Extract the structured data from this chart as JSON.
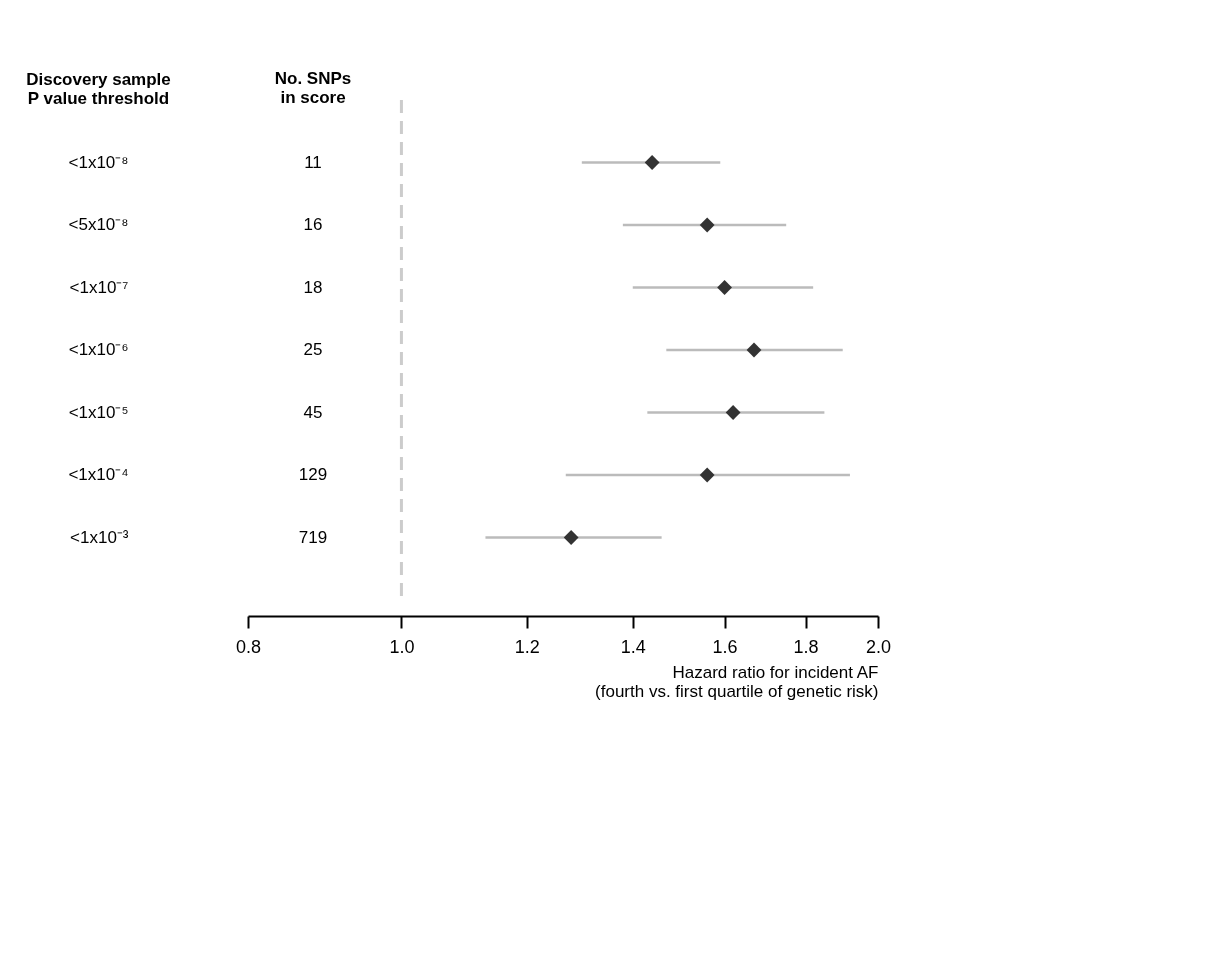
{
  "chart_data": {
    "type": "scatter",
    "orientation": "horizontal",
    "categories": [
      "<1x10⁻⁸",
      "<5x10⁻⁸",
      "<1x10⁻⁷",
      "<1x10⁻⁶",
      "<1x10⁻⁵",
      "<1x10⁻⁴",
      "<1x10⁻³"
    ],
    "y2_categories": [
      "11",
      "16",
      "18",
      "25",
      "45",
      "129",
      "719"
    ],
    "ylabel": "Discovery sample\nP value threshold",
    "y2label": "No. SNPs\nin score",
    "xlabel": "Hazard ratio for incident AF\n(fourth vs. first quartile of genetic risk)",
    "series": [
      {
        "color": "#333333",
        "values": [
          1.44,
          1.56,
          1.6,
          1.67,
          1.62,
          1.56,
          1.28
        ],
        "errors": [
          [
            1.3,
            1.59
          ],
          [
            1.38,
            1.75
          ],
          [
            1.4,
            1.82
          ],
          [
            1.47,
            1.9
          ],
          [
            1.43,
            1.85
          ],
          [
            1.27,
            1.92
          ],
          [
            1.13,
            1.46
          ]
        ]
      }
    ],
    "marker": "diamond",
    "log": "x",
    "xlim": [
      0.8,
      2.0
    ],
    "xticks": [
      0.8,
      {
        "value": 1.0,
        "label": "1.0"
      },
      1.2,
      1.4,
      1.6,
      1.8,
      {
        "value": 2.0,
        "label": "2.0"
      }
    ],
    "ref_lines": [
      {
        "axis": "x",
        "value": 1.0,
        "color": "#cccccc",
        "line_style": "dashed"
      }
    ],
    "grid": false
  }
}
